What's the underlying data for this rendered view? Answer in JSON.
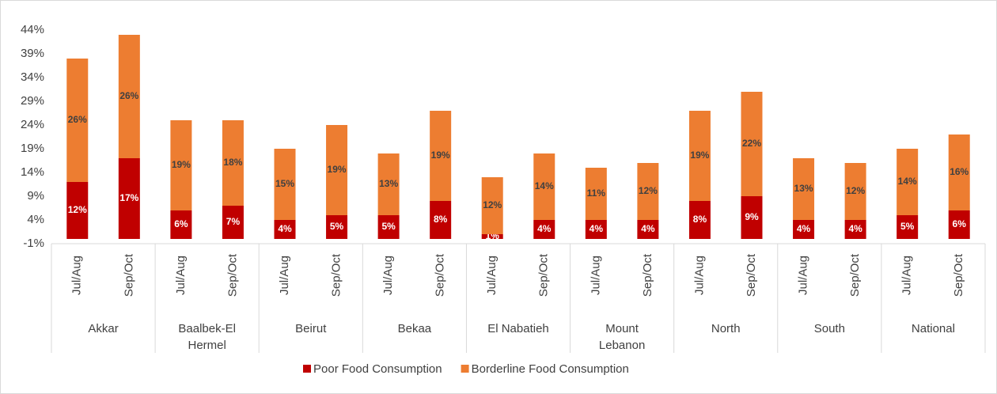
{
  "chart_data": {
    "type": "stacked_bar",
    "categories": [
      "Jul/Aug",
      "Sep/Oct",
      "Jul/Aug",
      "Sep/Oct",
      "Jul/Aug",
      "Sep/Oct",
      "Jul/Aug",
      "Sep/Oct",
      "Jul/Aug",
      "Sep/Oct",
      "Jul/Aug",
      "Sep/Oct",
      "Jul/Aug",
      "Sep/Oct",
      "Jul/Aug",
      "Sep/Oct",
      "Jul/Aug",
      "Sep/Oct"
    ],
    "groups": [
      "Akkar",
      "Baalbek-El Hermel",
      "Beirut",
      "Bekaa",
      "El Nabatieh",
      "Mount Lebanon",
      "North",
      "South",
      "National"
    ],
    "series": [
      {
        "name": "Poor Food Consumption",
        "color": "#c00000",
        "label_color": "#ffffff",
        "values": [
          12,
          17,
          6,
          7,
          4,
          5,
          5,
          8,
          1,
          4,
          4,
          4,
          8,
          9,
          4,
          4,
          5,
          6
        ],
        "value_labels": [
          "12%",
          "17%",
          "6%",
          "7%",
          "4%",
          "5%",
          "5%",
          "8%",
          "1%",
          "4%",
          "4%",
          "4%",
          "8%",
          "9%",
          "4%",
          "4%",
          "5%",
          "6%"
        ]
      },
      {
        "name": "Borderline Food Consumption",
        "color": "#ed7d31",
        "label_color": "#404040",
        "values": [
          26,
          26,
          19,
          18,
          15,
          19,
          13,
          19,
          12,
          14,
          11,
          12,
          19,
          22,
          13,
          12,
          14,
          16
        ],
        "value_labels": [
          "26%",
          "26%",
          "19%",
          "18%",
          "15%",
          "19%",
          "13%",
          "19%",
          "12%",
          "14%",
          "11%",
          "12%",
          "19%",
          "22%",
          "13%",
          "12%",
          "14%",
          "16%"
        ]
      }
    ],
    "ylim": [
      -1,
      44
    ],
    "yticks": [
      {
        "value": -1,
        "label": "-1%"
      },
      {
        "value": 4,
        "label": "4%"
      },
      {
        "value": 9,
        "label": "9%"
      },
      {
        "value": 14,
        "label": "14%"
      },
      {
        "value": 19,
        "label": "19%"
      },
      {
        "value": 24,
        "label": "24%"
      },
      {
        "value": 29,
        "label": "29%"
      },
      {
        "value": 34,
        "label": "34%"
      },
      {
        "value": 39,
        "label": "39%"
      },
      {
        "value": 44,
        "label": "44%"
      }
    ],
    "grid": false,
    "legend": "bottom"
  }
}
